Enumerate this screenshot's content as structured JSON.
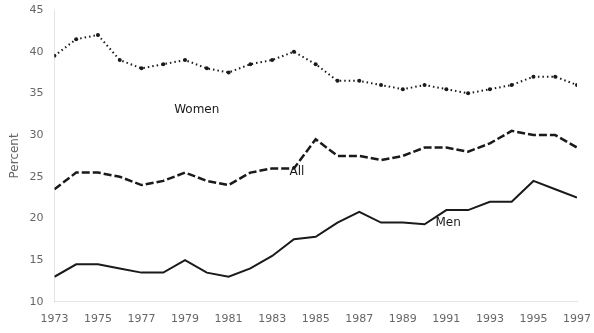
{
  "chart_data": {
    "type": "line",
    "x": [
      1973,
      1974,
      1975,
      1976,
      1977,
      1978,
      1979,
      1980,
      1981,
      1982,
      1983,
      1984,
      1985,
      1986,
      1987,
      1988,
      1989,
      1990,
      1991,
      1992,
      1993,
      1994,
      1995,
      1996,
      1997
    ],
    "series": [
      {
        "name": "Women",
        "color": "#1a1a1a",
        "line_style": "dotted",
        "marker": "dot",
        "values": [
          39.5,
          41.5,
          42.0,
          39.0,
          38.0,
          38.5,
          39.0,
          38.0,
          37.5,
          38.5,
          39.0,
          40.0,
          38.5,
          36.5,
          36.5,
          36.0,
          35.5,
          36.0,
          35.5,
          35.0,
          35.5,
          36.0,
          37.0,
          37.0,
          36.0
        ]
      },
      {
        "name": "All",
        "color": "#1a1a1a",
        "line_style": "dashed",
        "marker": "none",
        "values": [
          23.5,
          25.5,
          25.5,
          25.0,
          24.0,
          24.5,
          25.5,
          24.5,
          24.0,
          25.5,
          26.0,
          26.0,
          29.5,
          27.5,
          27.5,
          27.0,
          27.5,
          28.5,
          28.5,
          28.0,
          29.0,
          30.5,
          30.0,
          30.0,
          28.5
        ]
      },
      {
        "name": "Men",
        "color": "#1a1a1a",
        "line_style": "solid",
        "marker": "none",
        "values": [
          13.0,
          14.5,
          14.5,
          14.0,
          13.5,
          13.5,
          15.0,
          13.5,
          13.0,
          14.0,
          15.5,
          17.5,
          17.8,
          19.5,
          20.8,
          19.5,
          19.5,
          19.3,
          21.0,
          21.0,
          22.0,
          22.0,
          24.5,
          23.5,
          22.5
        ]
      }
    ],
    "ylabel": "Percent",
    "xlim": [
      1973,
      1997
    ],
    "xticks": [
      1973,
      1975,
      1977,
      1979,
      1981,
      1983,
      1985,
      1987,
      1989,
      1991,
      1993,
      1995,
      1997
    ],
    "ylim": [
      10,
      45
    ],
    "yticks": [
      10,
      15,
      20,
      25,
      30,
      35,
      40,
      45
    ],
    "annotations": [
      {
        "text": "Women",
        "x": 1978.5,
        "y": 33.8,
        "color": "#1a1a1a"
      },
      {
        "text": "All",
        "x": 1983.8,
        "y": 26.3,
        "color": "#1a1a1a"
      },
      {
        "text": "Men",
        "x": 1990.5,
        "y": 20.2,
        "color": "#1a1a1a"
      }
    ],
    "grid": false,
    "legend": false
  }
}
